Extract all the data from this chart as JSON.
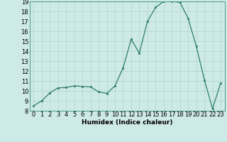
{
  "x": [
    0,
    1,
    2,
    3,
    4,
    5,
    6,
    7,
    8,
    9,
    10,
    11,
    12,
    13,
    14,
    15,
    16,
    17,
    18,
    19,
    20,
    21,
    22,
    23
  ],
  "y": [
    8.5,
    9.0,
    9.8,
    10.3,
    10.35,
    10.5,
    10.45,
    10.4,
    9.9,
    9.75,
    10.5,
    12.3,
    15.2,
    13.8,
    17.0,
    18.4,
    19.0,
    19.0,
    18.9,
    17.3,
    14.5,
    11.1,
    8.2,
    10.8
  ],
  "line_color": "#2e7d6e",
  "marker_color": "#2e7d6e",
  "bg_color": "#ceeae6",
  "grid_color": "#afd4cf",
  "xlabel": "Humidex (Indice chaleur)",
  "ylim": [
    8,
    19
  ],
  "xlim": [
    -0.5,
    23.5
  ],
  "yticks": [
    8,
    9,
    10,
    11,
    12,
    13,
    14,
    15,
    16,
    17,
    18,
    19
  ],
  "xticks": [
    0,
    1,
    2,
    3,
    4,
    5,
    6,
    7,
    8,
    9,
    10,
    11,
    12,
    13,
    14,
    15,
    16,
    17,
    18,
    19,
    20,
    21,
    22,
    23
  ],
  "label_fontsize": 6.5,
  "tick_fontsize": 6.0
}
